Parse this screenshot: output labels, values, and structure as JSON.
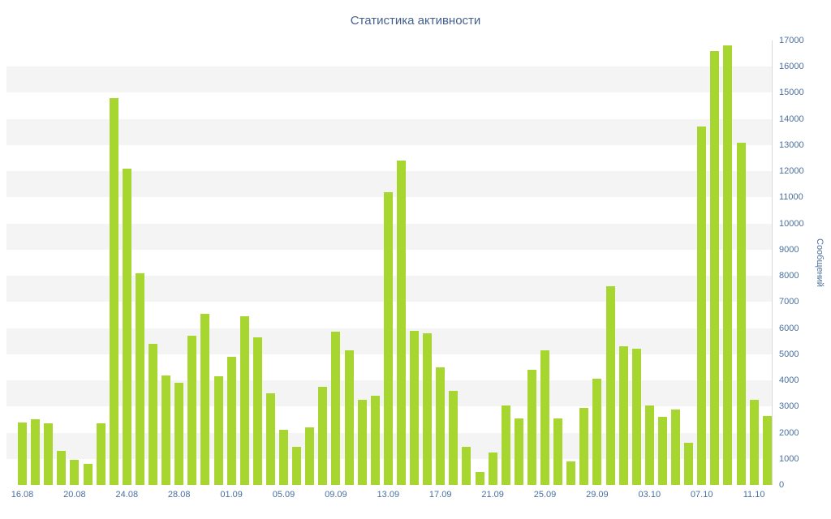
{
  "chart_data": {
    "type": "bar",
    "title": "Статистика активности",
    "xlabel": "",
    "ylabel": "Сообщений",
    "ylim": [
      0,
      17000
    ],
    "y_tick_step": 1000,
    "x_tick_every": 4,
    "x_tick_labels": [
      "16.08",
      "20.08",
      "24.08",
      "28.08",
      "01.09",
      "05.09",
      "09.09",
      "13.09",
      "17.09",
      "21.09",
      "25.09",
      "29.09",
      "03.10",
      "07.10",
      "11.10"
    ],
    "bar_color": "#a8d630",
    "stripe_color": "#f4f4f4",
    "text_color": "#4a6f9e",
    "title_color": "#44618c",
    "axis_line_color": "#d8d8d8",
    "grid": "alternating-bands",
    "legend": "none",
    "y_axis_position": "right",
    "categories": [
      "16.08",
      "17.08",
      "18.08",
      "19.08",
      "20.08",
      "21.08",
      "22.08",
      "23.08",
      "24.08",
      "25.08",
      "26.08",
      "27.08",
      "28.08",
      "29.08",
      "30.08",
      "31.08",
      "01.09",
      "02.09",
      "03.09",
      "04.09",
      "05.09",
      "06.09",
      "07.09",
      "08.09",
      "09.09",
      "10.09",
      "11.09",
      "12.09",
      "13.09",
      "14.09",
      "15.09",
      "16.09",
      "17.09",
      "18.09",
      "19.09",
      "20.09",
      "21.09",
      "22.09",
      "23.09",
      "24.09",
      "25.09",
      "26.09",
      "27.09",
      "28.09",
      "29.09",
      "30.09",
      "01.10",
      "02.10",
      "03.10",
      "04.10",
      "05.10",
      "06.10",
      "07.10",
      "08.10",
      "09.10",
      "10.10",
      "11.10",
      "12.10"
    ],
    "values": [
      2400,
      2500,
      2350,
      1300,
      950,
      800,
      2350,
      14800,
      12100,
      8100,
      5400,
      4200,
      3900,
      5700,
      6550,
      4150,
      4900,
      6450,
      5650,
      3500,
      2100,
      1450,
      2200,
      3750,
      5850,
      5150,
      3250,
      3400,
      11200,
      12400,
      5900,
      5800,
      4500,
      3600,
      1450,
      500,
      1250,
      3050,
      2550,
      4400,
      5150,
      2550,
      900,
      2950,
      4050,
      7600,
      5300,
      5200,
      3050,
      2600,
      2900,
      1600,
      13700,
      16600,
      16800,
      13100,
      3250,
      2650
    ]
  }
}
